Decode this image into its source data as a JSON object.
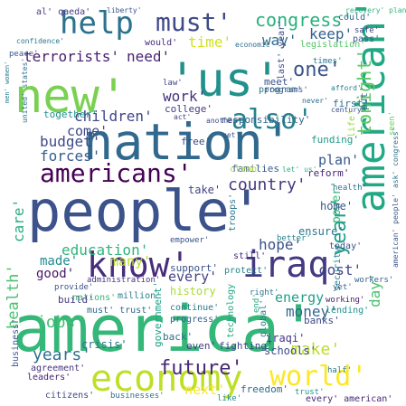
{
  "words": [
    {
      "text": "america'",
      "c": "#35b779"
    },
    {
      "text": "people'",
      "c": "#3b528b"
    },
    {
      "text": "nation'",
      "c": "#31688e"
    },
    {
      "text": "new'",
      "c": "#7ad151"
    },
    {
      "text": "'us'",
      "c": "#21918c"
    },
    {
      "text": "american'",
      "c": "#22a884"
    },
    {
      "text": "economy",
      "c": "#bddf26"
    },
    {
      "text": "know'",
      "c": "#472d7b"
    },
    {
      "text": "iraq",
      "c": "#443983"
    },
    {
      "text": "americans'",
      "c": "#440154"
    },
    {
      "text": "help",
      "c": "#2c728e"
    },
    {
      "text": "world'",
      "c": "#fde725"
    },
    {
      "text": "also'",
      "c": "#26828e"
    },
    {
      "text": "must'",
      "c": "#3e4989"
    },
    {
      "text": "future'",
      "c": "#472878"
    },
    {
      "text": "congress'",
      "c": "#2ab07f"
    },
    {
      "text": "country'",
      "c": "#443a83"
    },
    {
      "text": "year'",
      "c": "#1f9e89"
    },
    {
      "text": "tonight'",
      "c": "#5ec962"
    },
    {
      "text": "one'",
      "c": "#3a548c"
    },
    {
      "text": "terrorists'",
      "c": "#481d6f"
    },
    {
      "text": "need'",
      "c": "#482374"
    },
    {
      "text": "children'",
      "c": "#414487"
    },
    {
      "text": "work'",
      "c": "#46337e"
    },
    {
      "text": "time'",
      "c": "#d2e21b"
    },
    {
      "text": "way'",
      "c": "#2e6e8e"
    },
    {
      "text": "keep'",
      "c": "#34618d"
    },
    {
      "text": "education'",
      "c": "#2fb47c"
    },
    {
      "text": "hope'",
      "c": "#3b518b"
    },
    {
      "text": "budget'",
      "c": "#3e4a89"
    },
    {
      "text": "forces'",
      "c": "#355f8d"
    },
    {
      "text": "come'",
      "c": "#3f4889"
    },
    {
      "text": "care'",
      "c": "#29af7f"
    },
    {
      "text": "health'",
      "c": "#48c16e"
    },
    {
      "text": "jobs'",
      "c": "#44bf70"
    },
    {
      "text": "years'",
      "c": "#2e6f8e"
    },
    {
      "text": "make'",
      "c": "#bade28"
    },
    {
      "text": "next'",
      "c": "#fde725"
    },
    {
      "text": "money'",
      "c": "#31678e"
    },
    {
      "text": "energy",
      "c": "#1fa088"
    },
    {
      "text": "cost'",
      "c": "#3f4788"
    },
    {
      "text": "many'",
      "c": "#b5de2b"
    },
    {
      "text": "every'",
      "c": "#424186"
    },
    {
      "text": "good'",
      "c": "#481467"
    },
    {
      "text": "plan'",
      "c": "#38588c"
    },
    {
      "text": "power'",
      "c": "#35b779"
    },
    {
      "text": "day'",
      "c": "#4ac16d"
    },
    {
      "text": "made'",
      "c": "#238a8d"
    },
    {
      "text": "responsibility'",
      "c": "#33638d"
    },
    {
      "text": "security",
      "c": "#25838e"
    },
    {
      "text": "iraqi'",
      "c": "#453781"
    },
    {
      "text": "schools'",
      "c": "#3d4d8a"
    },
    {
      "text": "government'",
      "c": "#1fa187"
    },
    {
      "text": "crisis'",
      "c": "#2c728e"
    },
    {
      "text": "support'",
      "c": "#3b518b"
    },
    {
      "text": "history",
      "c": "#aadc32"
    },
    {
      "text": "ensure'",
      "c": "#2b758e"
    },
    {
      "text": "reform'",
      "c": "#482576"
    },
    {
      "text": "home'",
      "c": "#39568c"
    },
    {
      "text": "take'",
      "c": "#414287"
    },
    {
      "text": "families",
      "c": "#355e8d"
    },
    {
      "text": "program'",
      "c": "#2a768e"
    },
    {
      "text": "meet'",
      "c": "#3b528b"
    },
    {
      "text": "college'",
      "c": "#433e85"
    },
    {
      "text": "funding'",
      "c": "#1f9a8a"
    },
    {
      "text": "together'",
      "c": "#21908d"
    },
    {
      "text": "free'",
      "c": "#3f4788"
    },
    {
      "text": "seen'",
      "c": "#6ccd5a"
    },
    {
      "text": "put'",
      "c": "#2d708e"
    },
    {
      "text": "first'",
      "c": "#2d718e"
    },
    {
      "text": "life'",
      "c": "#9bd93c"
    },
    {
      "text": "back'",
      "c": "#2c728e"
    },
    {
      "text": "build'",
      "c": "#443a83"
    },
    {
      "text": "business'",
      "c": "#38588c"
    },
    {
      "text": "citizens'",
      "c": "#3f4788"
    },
    {
      "text": "businesses'",
      "c": "#2e6f8e"
    },
    {
      "text": "freedom'",
      "c": "#31688e"
    },
    {
      "text": "trust'",
      "c": "#1f968b"
    },
    {
      "text": "every' american'",
      "c": "#482677"
    },
    {
      "text": "half'",
      "c": "#2a778e"
    },
    {
      "text": "like'",
      "c": "#23898e"
    },
    {
      "text": "banks'",
      "c": "#3e4a89"
    },
    {
      "text": "global'",
      "c": "#297b8e"
    },
    {
      "text": "lending'",
      "c": "#21918c"
    },
    {
      "text": "technology",
      "c": "#22a884"
    },
    {
      "text": "fighting'",
      "c": "#3f4889"
    },
    {
      "text": "even'",
      "c": "#433d84"
    },
    {
      "text": "progress'",
      "c": "#35608d"
    },
    {
      "text": "continue'",
      "c": "#287c8e"
    },
    {
      "text": "nations'",
      "c": "#35b779"
    },
    {
      "text": "million'",
      "c": "#277f8e"
    },
    {
      "text": "provide'",
      "c": "#3b528b"
    },
    {
      "text": "agreement'",
      "c": "#46337e"
    },
    {
      "text": "leaders'",
      "c": "#482475"
    },
    {
      "text": "workers'",
      "c": "#34618d"
    },
    {
      "text": "better'",
      "c": "#25848e"
    },
    {
      "text": "protect'",
      "c": "#26828e"
    },
    {
      "text": "right'",
      "c": "#2a768e"
    },
    {
      "text": "must' trust'",
      "c": "#31688e"
    },
    {
      "text": "administration'",
      "c": "#453581"
    },
    {
      "text": "empower'",
      "c": "#3a548c"
    },
    {
      "text": "still'",
      "c": "#472c7a"
    },
    {
      "text": "today'",
      "c": "#3b518b"
    },
    {
      "text": "yet'",
      "c": "#31688e"
    },
    {
      "text": "end'",
      "c": "#25ab82"
    },
    {
      "text": "working'",
      "c": "#481b6d"
    },
    {
      "text": "troops'",
      "c": "#2a788e"
    },
    {
      "text": "american' people'",
      "c": "#38598c"
    },
    {
      "text": "ask' congress'",
      "c": "#2d718e"
    },
    {
      "text": "health'",
      "c": "#2c738e"
    },
    {
      "text": "clean'",
      "c": "#b8de29"
    },
    {
      "text": "let' us'",
      "c": "#2ab07f"
    },
    {
      "text": "get'",
      "c": "#3a548c"
    },
    {
      "text": "another'",
      "c": "#3e4a89"
    },
    {
      "text": "act'",
      "c": "#414487"
    },
    {
      "text": "programs'",
      "c": "#39568c"
    },
    {
      "text": "century'",
      "c": "#3b528b"
    },
    {
      "text": "never'",
      "c": "#2d708e"
    },
    {
      "text": "last' year'",
      "c": "#3e4c8a"
    },
    {
      "text": "law'",
      "c": "#3f4788"
    },
    {
      "text": "would'",
      "c": "#472d7b"
    },
    {
      "text": "economic'",
      "c": "#2e6e8e"
    },
    {
      "text": "afford'",
      "c": "#277f8e"
    },
    {
      "text": "times'",
      "c": "#2a778e"
    },
    {
      "text": "legislation'",
      "c": "#54c568"
    },
    {
      "text": "pass'",
      "c": "#3a548c"
    },
    {
      "text": "safe'",
      "c": "#3f4788"
    },
    {
      "text": "could'",
      "c": "#31688e"
    },
    {
      "text": "recovery' plan'",
      "c": "#32b67a"
    },
    {
      "text": "al' qaeda'",
      "c": "#433e85"
    },
    {
      "text": "liberty'",
      "c": "#3b528b"
    },
    {
      "text": "confidence'",
      "c": "#2a788e"
    },
    {
      "text": "peace'",
      "c": "#38588c"
    },
    {
      "text": "men' women'",
      "c": "#287d8e"
    },
    {
      "text": "united' states'",
      "c": "#2d708e"
    }
  ]
}
